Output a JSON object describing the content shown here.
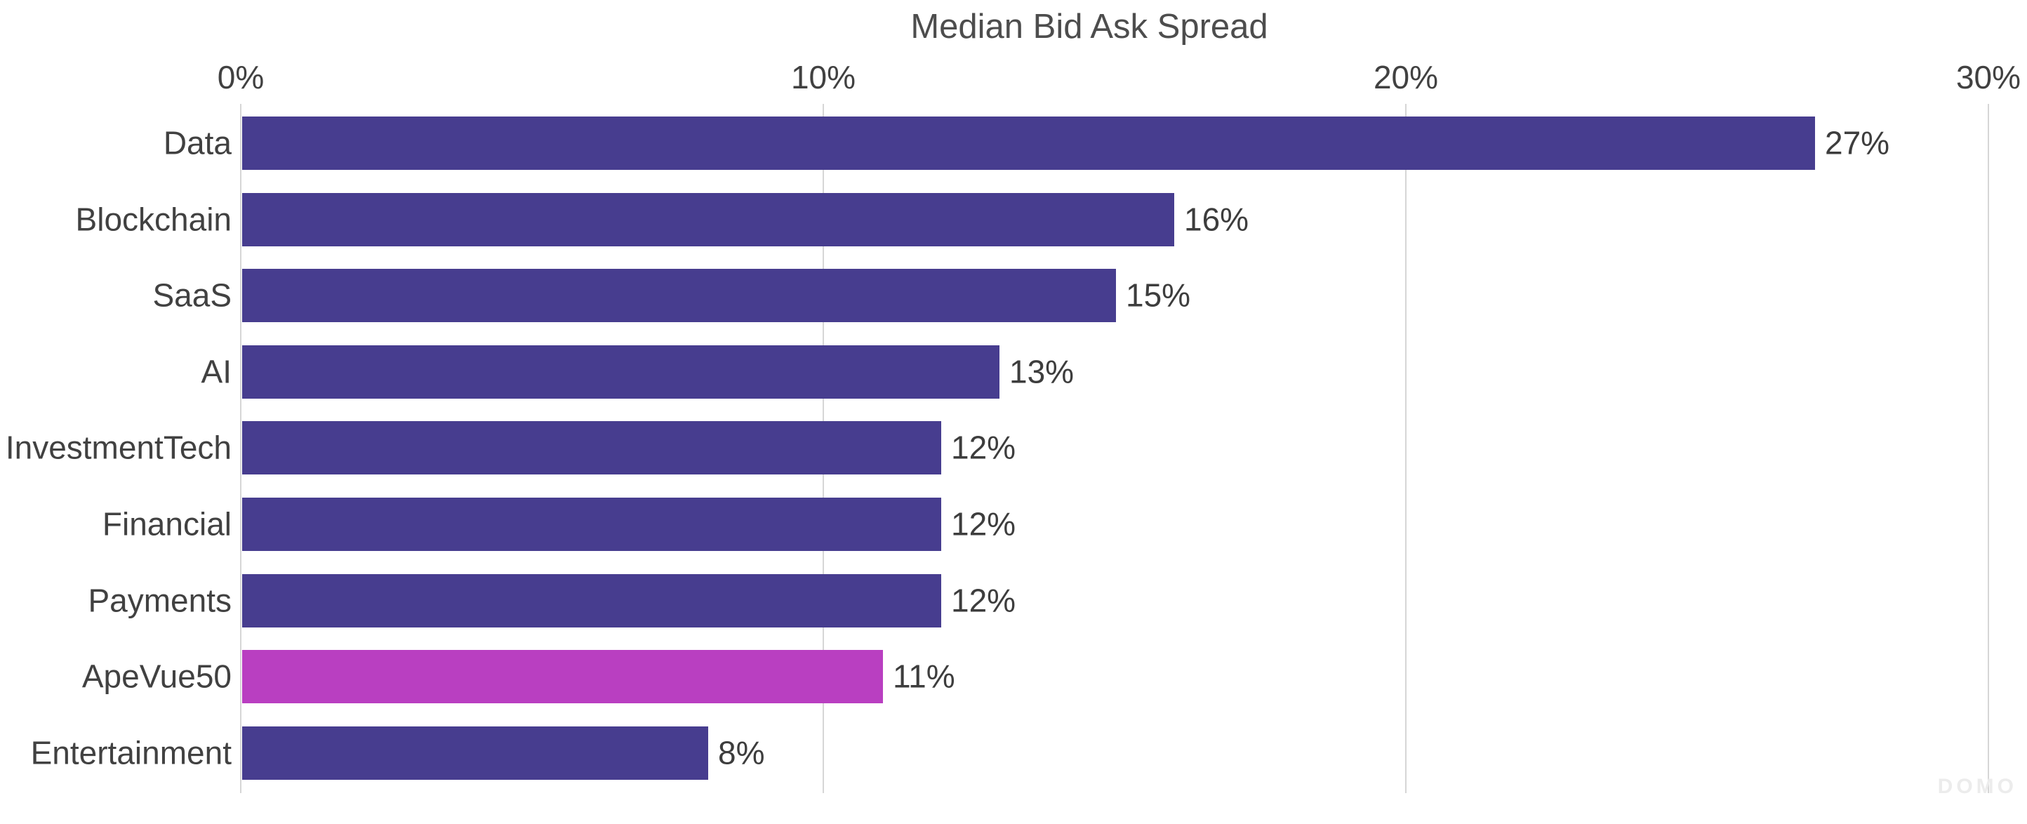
{
  "watermark": "DOMO",
  "chart_data": {
    "type": "bar",
    "orientation": "horizontal",
    "title": "Median Bid Ask Spread",
    "axis_position": "top",
    "grid": true,
    "categories": [
      "Data",
      "Blockchain",
      "SaaS",
      "AI",
      "InvestmentTech",
      "Financial",
      "Payments",
      "ApeVue50",
      "Entertainment"
    ],
    "values": [
      27,
      16,
      15,
      13,
      12,
      12,
      12,
      11,
      8
    ],
    "value_labels": [
      "27%",
      "16%",
      "15%",
      "13%",
      "12%",
      "12%",
      "12%",
      "11%",
      "8%"
    ],
    "highlighted_category": "ApeVue50",
    "x_ticks": [
      "0%",
      "10%",
      "20%",
      "30%"
    ],
    "x_tick_values": [
      0,
      10,
      20,
      30
    ],
    "xlim": [
      0,
      30
    ],
    "xlabel": "",
    "ylabel": "",
    "legend": "none",
    "colors": {
      "bar": "#473D8F",
      "highlight": "#B93FC1",
      "gridline": "#D6D6D6",
      "text": "#414141",
      "title": "#4D4D4D",
      "watermark_text": "#ECECEC"
    }
  }
}
